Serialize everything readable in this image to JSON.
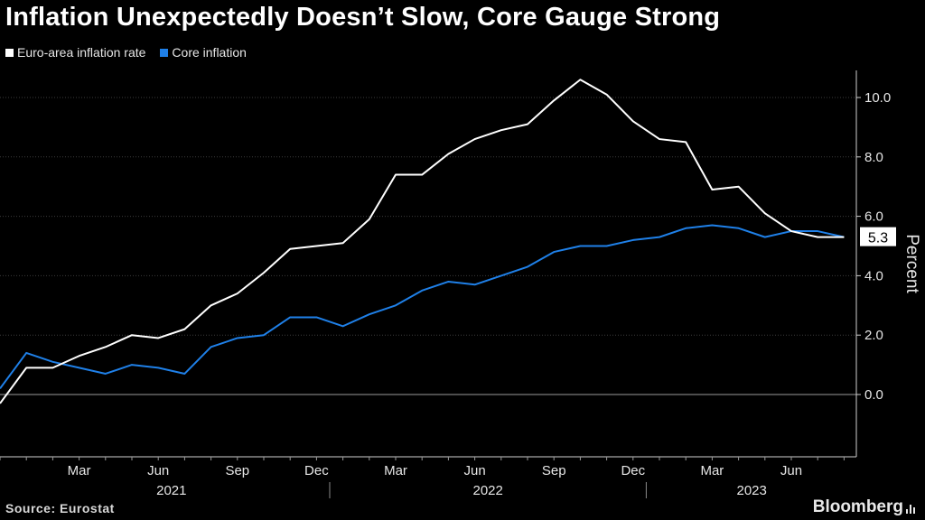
{
  "title": "Inflation Unexpectedly Doesn’t Slow, Core Gauge Strong",
  "source": "Source: Eurostat",
  "brand": "Bloomberg",
  "colors": {
    "headline": "#ffffff",
    "core": "#1f80e8",
    "background": "#000000",
    "grid": "#4a4a4a"
  },
  "chart_data": {
    "type": "line",
    "title": "Inflation Unexpectedly Doesn’t Slow, Core Gauge Strong",
    "ylabel": "Percent",
    "xlabel": "",
    "ylim": [
      -2,
      11
    ],
    "yticks": [
      0,
      2,
      4,
      6,
      8,
      10
    ],
    "ytick_labels": [
      "0.0",
      "2.0",
      "4.0",
      "6.0",
      "8.0",
      "10.0"
    ],
    "grid": true,
    "legend_position": "top-left",
    "x": [
      "2020-12",
      "2021-01",
      "2021-02",
      "2021-03",
      "2021-04",
      "2021-05",
      "2021-06",
      "2021-07",
      "2021-08",
      "2021-09",
      "2021-10",
      "2021-11",
      "2021-12",
      "2022-01",
      "2022-02",
      "2022-03",
      "2022-04",
      "2022-05",
      "2022-06",
      "2022-07",
      "2022-08",
      "2022-09",
      "2022-10",
      "2022-11",
      "2022-12",
      "2023-01",
      "2023-02",
      "2023-03",
      "2023-04",
      "2023-05",
      "2023-06",
      "2023-07",
      "2023-08"
    ],
    "xtick_labels": [
      {
        "label": "Mar",
        "index": 3
      },
      {
        "label": "Jun",
        "index": 6
      },
      {
        "label": "Sep",
        "index": 9
      },
      {
        "label": "Dec",
        "index": 12
      },
      {
        "label": "Mar",
        "index": 15
      },
      {
        "label": "Jun",
        "index": 18
      },
      {
        "label": "Sep",
        "index": 21
      },
      {
        "label": "Dec",
        "index": 24
      },
      {
        "label": "Mar",
        "index": 27
      },
      {
        "label": "Jun",
        "index": 30
      }
    ],
    "year_labels": [
      {
        "label": "2021",
        "from": 1,
        "to": 12
      },
      {
        "label": "2022",
        "from": 13,
        "to": 24
      },
      {
        "label": "2023",
        "from": 25,
        "to": 32
      }
    ],
    "series": [
      {
        "name": "Euro-area inflation rate",
        "color": "#ffffff",
        "values": [
          -0.3,
          0.9,
          0.9,
          1.3,
          1.6,
          2.0,
          1.9,
          2.2,
          3.0,
          3.4,
          4.1,
          4.9,
          5.0,
          5.1,
          5.9,
          7.4,
          7.4,
          8.1,
          8.6,
          8.9,
          9.1,
          9.9,
          10.6,
          10.1,
          9.2,
          8.6,
          8.5,
          6.9,
          7.0,
          6.1,
          5.5,
          5.3,
          5.3
        ]
      },
      {
        "name": "Core inflation",
        "color": "#1f80e8",
        "values": [
          0.2,
          1.4,
          1.1,
          0.9,
          0.7,
          1.0,
          0.9,
          0.7,
          1.6,
          1.9,
          2.0,
          2.6,
          2.6,
          2.3,
          2.7,
          3.0,
          3.5,
          3.8,
          3.7,
          4.0,
          4.3,
          4.8,
          5.0,
          5.0,
          5.2,
          5.3,
          5.6,
          5.7,
          5.6,
          5.3,
          5.5,
          5.5,
          5.3
        ]
      }
    ],
    "last_value_label": "5.3"
  }
}
